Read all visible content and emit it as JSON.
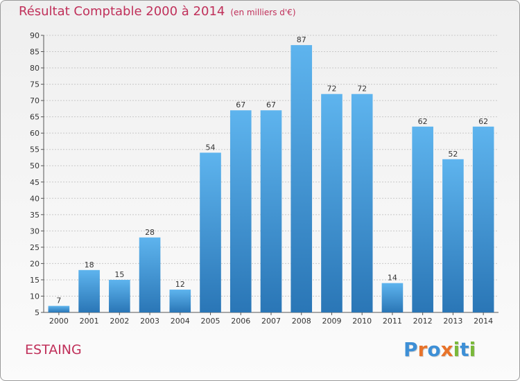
{
  "title": "Résultat Comptable 2000 à 2014",
  "subtitle": "(en milliers d'€)",
  "commune": "ESTAING",
  "logo": {
    "letters": [
      {
        "char": "P",
        "color": "#3d8fd6"
      },
      {
        "char": "r",
        "color": "#e8732a"
      },
      {
        "char": "o",
        "color": "#3d8fd6"
      },
      {
        "char": "x",
        "color": "#e8732a"
      },
      {
        "char": "i",
        "color": "#7ab83a"
      },
      {
        "char": "t",
        "color": "#3d8fd6"
      },
      {
        "char": "i",
        "color": "#7ab83a"
      }
    ]
  },
  "chart_data": {
    "type": "bar",
    "title": "Résultat Comptable 2000 à 2014",
    "subtitle": "(en milliers d'€)",
    "categories": [
      "2000",
      "2001",
      "2002",
      "2003",
      "2004",
      "2005",
      "2006",
      "2007",
      "2008",
      "2009",
      "2010",
      "2011",
      "2012",
      "2013",
      "2014"
    ],
    "values": [
      7,
      18,
      15,
      28,
      12,
      54,
      67,
      67,
      87,
      72,
      72,
      14,
      62,
      52,
      62
    ],
    "ylim": [
      5,
      90
    ],
    "yticks": [
      5,
      10,
      15,
      20,
      25,
      30,
      35,
      40,
      45,
      50,
      55,
      60,
      65,
      70,
      75,
      80,
      85,
      90
    ],
    "grid": true,
    "xlabel": "",
    "ylabel": "",
    "colors": {
      "bar_top": "#5eb4ee",
      "bar_bottom": "#2a76b6",
      "grid": "#c8c8c8",
      "axis_text": "#333333"
    }
  }
}
